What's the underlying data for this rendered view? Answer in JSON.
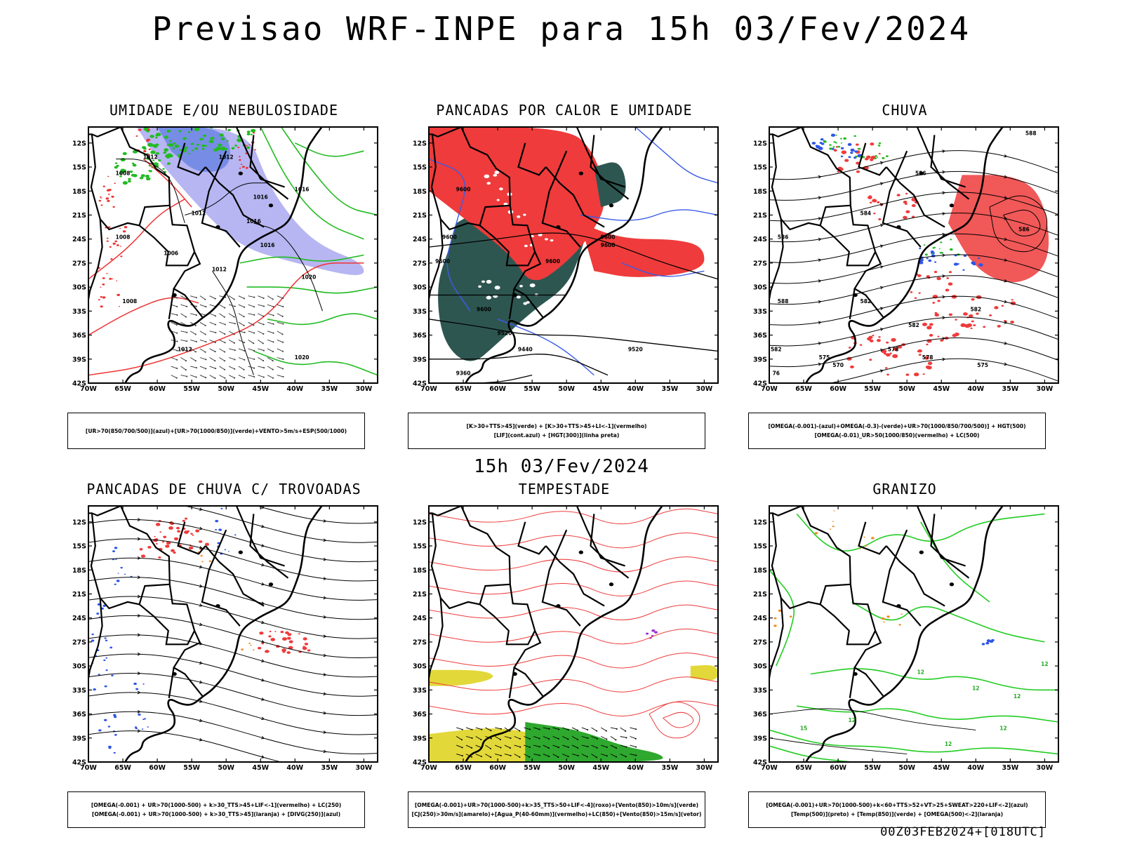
{
  "page": {
    "title": "Previsao WRF-INPE  para 15h 03/Fev/2024",
    "subtitle": "15h 03/Fev/2024",
    "footer": "00Z03FEB2024+[018UTC]"
  },
  "axes": {
    "lon_labels": [
      "70W",
      "65W",
      "60W",
      "55W",
      "50W",
      "45W",
      "40W",
      "35W",
      "30W"
    ],
    "lat_labels": [
      "12S",
      "15S",
      "18S",
      "21S",
      "24S",
      "27S",
      "30S",
      "33S",
      "36S",
      "39S",
      "42S"
    ],
    "lon_range": [
      -70,
      -28
    ],
    "lat_range": [
      -42,
      -10
    ]
  },
  "panels": [
    {
      "id": "umidade",
      "title": "UMIDADE E/OU NEBULOSIDADE",
      "legend": [
        "[UR>70(850/700/500)](azul)+[UR>70(1000/850)](verde)+VENTO>5m/s+ESP(500/1000)"
      ],
      "contour_labels": [
        {
          "text": "1012",
          "lon": -61,
          "lat": -14
        },
        {
          "text": "1008",
          "lon": -65,
          "lat": -16
        },
        {
          "text": "1012",
          "lon": -50,
          "lat": -14
        },
        {
          "text": "1016",
          "lon": -45,
          "lat": -19
        },
        {
          "text": "1016",
          "lon": -39,
          "lat": -18
        },
        {
          "text": "1012",
          "lon": -54,
          "lat": -21
        },
        {
          "text": "1016",
          "lon": -46,
          "lat": -22
        },
        {
          "text": "1016",
          "lon": -44,
          "lat": -25
        },
        {
          "text": "1008",
          "lon": -65,
          "lat": -24
        },
        {
          "text": "1006",
          "lon": -58,
          "lat": -26
        },
        {
          "text": "1012",
          "lon": -51,
          "lat": -28
        },
        {
          "text": "1020",
          "lon": -38,
          "lat": -29
        },
        {
          "text": "1008",
          "lon": -64,
          "lat": -32
        },
        {
          "text": "1012",
          "lon": -56,
          "lat": -38
        },
        {
          "text": "1020",
          "lon": -39,
          "lat": -39
        }
      ]
    },
    {
      "id": "pancadas_calor",
      "title": "PANCADAS POR CALOR E UMIDADE",
      "legend": [
        "[K>30+TTS>45](verde) + [K>30+TTS>45+LI<-1](vermelho)",
        "[LIF](cont.azul) + [HGT(300)](linha preta)"
      ],
      "contour_labels": [
        {
          "text": "9600",
          "lon": -65,
          "lat": -18
        },
        {
          "text": "9600",
          "lon": -67,
          "lat": -24
        },
        {
          "text": "9600",
          "lon": -68,
          "lat": -27
        },
        {
          "text": "9600",
          "lon": -44,
          "lat": -24
        },
        {
          "text": "9600",
          "lon": -44,
          "lat": -25
        },
        {
          "text": "9600",
          "lon": -52,
          "lat": -27
        },
        {
          "text": "9600",
          "lon": -62,
          "lat": -33
        },
        {
          "text": "9520",
          "lon": -59,
          "lat": -36
        },
        {
          "text": "9440",
          "lon": -56,
          "lat": -38
        },
        {
          "text": "9520",
          "lon": -40,
          "lat": -38
        },
        {
          "text": "9360",
          "lon": -65,
          "lat": -41
        }
      ]
    },
    {
      "id": "chuva",
      "title": "CHUVA",
      "legend": [
        "[OMEGA(-0.001)-(azul)+OMEGA(-0.3)-(verde)+UR>70(1000/850/700/500)] + HGT(500)",
        "[OMEGA(-0.01)_UR>50(1000/850)(vermelho) + LC(500)"
      ],
      "contour_labels": [
        {
          "text": "588",
          "lon": -32,
          "lat": -11
        },
        {
          "text": "586",
          "lon": -48,
          "lat": -16
        },
        {
          "text": "584",
          "lon": -56,
          "lat": -21
        },
        {
          "text": "586",
          "lon": -33,
          "lat": -23
        },
        {
          "text": "586",
          "lon": -68,
          "lat": -24
        },
        {
          "text": "588",
          "lon": -68,
          "lat": -32
        },
        {
          "text": "582",
          "lon": -56,
          "lat": -32
        },
        {
          "text": "582",
          "lon": -40,
          "lat": -33
        },
        {
          "text": "582",
          "lon": -49,
          "lat": -35
        },
        {
          "text": "582",
          "lon": -69,
          "lat": -38
        },
        {
          "text": "578",
          "lon": -52,
          "lat": -38
        },
        {
          "text": "575",
          "lon": -62,
          "lat": -39
        },
        {
          "text": "578",
          "lon": -47,
          "lat": -39
        },
        {
          "text": "570",
          "lon": -60,
          "lat": -40
        },
        {
          "text": "575",
          "lon": -39,
          "lat": -40
        },
        {
          "text": "76",
          "lon": -69,
          "lat": -41
        }
      ]
    },
    {
      "id": "pancadas_trovoadas",
      "title": "PANCADAS DE CHUVA C/ TROVOADAS",
      "legend": [
        "[OMEGA(-0.001) + UR>70(1000-500) + k>30_TTS>45+LIF<-1](vermelho) + LC(250)",
        "[OMEGA(-0.001) + UR>70(1000-500) + k>30_TTS>45](laranja) + [DIVG(250)](azul)"
      ],
      "contour_labels": []
    },
    {
      "id": "tempestade",
      "title": "TEMPESTADE",
      "legend": [
        "[OMEGA(-0.001)+UR>70(1000-500)+k>35_TTS>50+LIF<-4](roxo)+[Vento(850)>10m/s](verde)",
        "[CJ(250)>30m/s](amarelo)+[Agua_P(40-60mm)](vermelho)+LC(850)+[Vento(850)>15m/s](vetor)"
      ],
      "contour_labels": []
    },
    {
      "id": "granizo",
      "title": "GRANIZO",
      "legend": [
        "[OMEGA(-0.001)+UR>70(1000-500)+k<60+TTS>52+VT>25+SWEAT>220+LIF<-2](azul)",
        "[Temp(500)](preto) + [Temp(850)](verde) + [OMEGA(500)<-2](laranja)"
      ],
      "contour_labels": [
        {
          "text": "12",
          "lon": -40,
          "lat": -33
        },
        {
          "text": "12",
          "lon": -34,
          "lat": -34
        },
        {
          "text": "12",
          "lon": -48,
          "lat": -31
        },
        {
          "text": "15",
          "lon": -65,
          "lat": -38
        },
        {
          "text": "12",
          "lon": -58,
          "lat": -37
        },
        {
          "text": "12",
          "lon": -44,
          "lat": -40
        },
        {
          "text": "12",
          "lon": -36,
          "lat": -38
        },
        {
          "text": "12",
          "lon": -30,
          "lat": -30
        }
      ]
    }
  ]
}
